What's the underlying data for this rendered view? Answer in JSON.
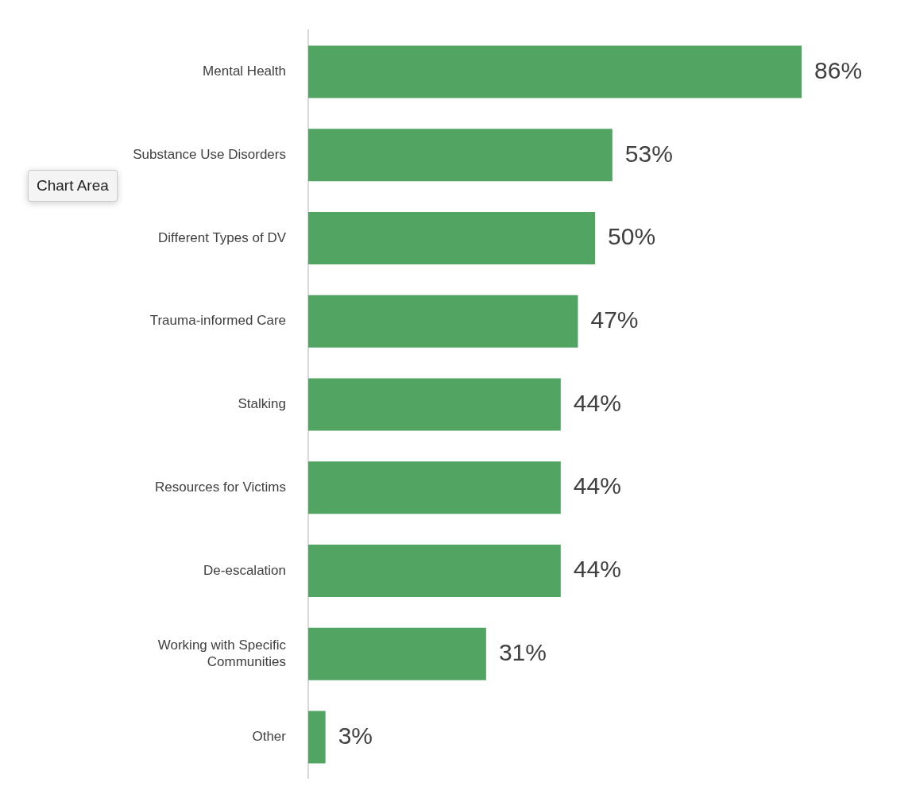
{
  "chart_data": {
    "type": "bar",
    "orientation": "horizontal",
    "categories": [
      "Mental Health",
      "Substance Use Disorders",
      "Different Types of DV",
      "Trauma-informed Care",
      "Stalking",
      "Resources for Victims",
      "De-escalation",
      "Working with Specific\nCommunities",
      "Other"
    ],
    "values": [
      86,
      53,
      50,
      47,
      44,
      44,
      44,
      31,
      3
    ],
    "value_labels": [
      "86%",
      "53%",
      "50%",
      "47%",
      "44%",
      "44%",
      "44%",
      "31%",
      "3%"
    ],
    "color": "#52a463",
    "tick_labels": "y",
    "legend": false,
    "annotations": [
      "Chart Area"
    ]
  }
}
